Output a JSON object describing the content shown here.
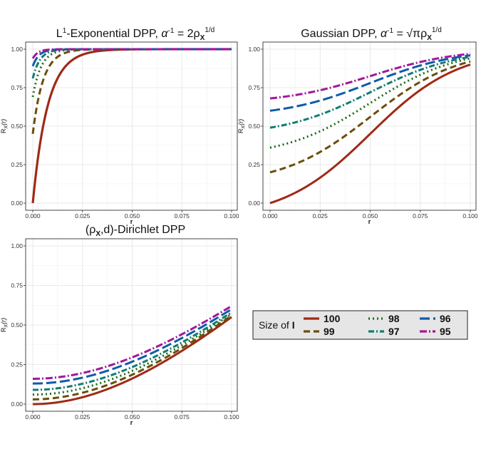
{
  "chart_data": [
    {
      "type": "line",
      "model": "exponential",
      "title": {
        "pre": "L",
        "sup1": "1",
        "mid": "-Exponential DPP, ",
        "alpha": "α",
        "sup2": "-1",
        "eq": " = 2ρ",
        "sub": "X",
        "sup3": "1/d"
      },
      "xlabel": "r",
      "ylabel": "R_X(r)",
      "xlim": [
        0,
        0.1
      ],
      "ylim": [
        0,
        1
      ],
      "xticks": [
        "0.000",
        "0.025",
        "0.050",
        "0.075",
        "0.100"
      ],
      "yticks": [
        "0.00",
        "0.25",
        "0.50",
        "0.75",
        "1.00"
      ],
      "series": [
        {
          "name": "100",
          "r0": 0.0,
          "scale": 0.0075
        },
        {
          "name": "99",
          "r0": 0.45,
          "scale": 0.0052
        },
        {
          "name": "98",
          "r0": 0.69,
          "scale": 0.0042
        },
        {
          "name": "97",
          "r0": 0.81,
          "scale": 0.0036
        },
        {
          "name": "96",
          "r0": 0.89,
          "scale": 0.0031
        },
        {
          "name": "95",
          "r0": 0.94,
          "scale": 0.0027
        }
      ]
    },
    {
      "type": "line",
      "model": "gaussian",
      "title": {
        "pre": "Gaussian DPP, ",
        "alpha": "α",
        "sup1": "-1",
        "eq": " = ",
        "sqrt": "√π",
        "rho": "ρ",
        "sub": "X",
        "sup3": "1/d"
      },
      "xlabel": "r",
      "ylabel": "R_X(r)",
      "xlim": [
        0,
        0.1
      ],
      "ylim": [
        0,
        1
      ],
      "xticks": [
        "0.000",
        "0.025",
        "0.050",
        "0.075",
        "0.100"
      ],
      "yticks": [
        "0.00",
        "0.25",
        "0.50",
        "0.75",
        "1.00"
      ],
      "series": [
        {
          "name": "100",
          "r0": 0.0,
          "r1": 0.9
        },
        {
          "name": "99",
          "r0": 0.2,
          "r1": 0.92
        },
        {
          "name": "98",
          "r0": 0.36,
          "r1": 0.94
        },
        {
          "name": "97",
          "r0": 0.49,
          "r1": 0.95
        },
        {
          "name": "96",
          "r0": 0.6,
          "r1": 0.96
        },
        {
          "name": "95",
          "r0": 0.68,
          "r1": 0.97
        }
      ]
    },
    {
      "type": "line",
      "model": "dirichlet",
      "title": {
        "pre": "(ρ",
        "sub": "X",
        "post": ",d)-Dirichlet DPP"
      },
      "xlabel": "r",
      "ylabel": "R_X(r)",
      "xlim": [
        0,
        0.1
      ],
      "ylim": [
        0,
        1
      ],
      "xticks": [
        "0.000",
        "0.025",
        "0.050",
        "0.075",
        "0.100"
      ],
      "yticks": [
        "0.00",
        "0.25",
        "0.50",
        "0.75",
        "1.00"
      ],
      "series": [
        {
          "name": "100",
          "r0": 0.0,
          "r1": 0.55
        },
        {
          "name": "99",
          "r0": 0.03,
          "r1": 0.56
        },
        {
          "name": "98",
          "r0": 0.06,
          "r1": 0.57
        },
        {
          "name": "97",
          "r0": 0.09,
          "r1": 0.58
        },
        {
          "name": "96",
          "r0": 0.13,
          "r1": 0.6
        },
        {
          "name": "95",
          "r0": 0.16,
          "r1": 0.62
        }
      ]
    }
  ],
  "legend": {
    "title_pre": "Size of ",
    "title_bold": "I",
    "entries": [
      "100",
      "99",
      "98",
      "97",
      "96",
      "95"
    ]
  },
  "styles": [
    {
      "color": "#9E2A16",
      "dash": ""
    },
    {
      "color": "#6B4E0C",
      "dash": "9,5"
    },
    {
      "color": "#1B6B12",
      "dash": "2,4"
    },
    {
      "color": "#137C74",
      "dash": "8,3,2,3"
    },
    {
      "color": "#0E5BAA",
      "dash": "14,5"
    },
    {
      "color": "#A2179A",
      "dash": "10,3,2,3"
    }
  ]
}
